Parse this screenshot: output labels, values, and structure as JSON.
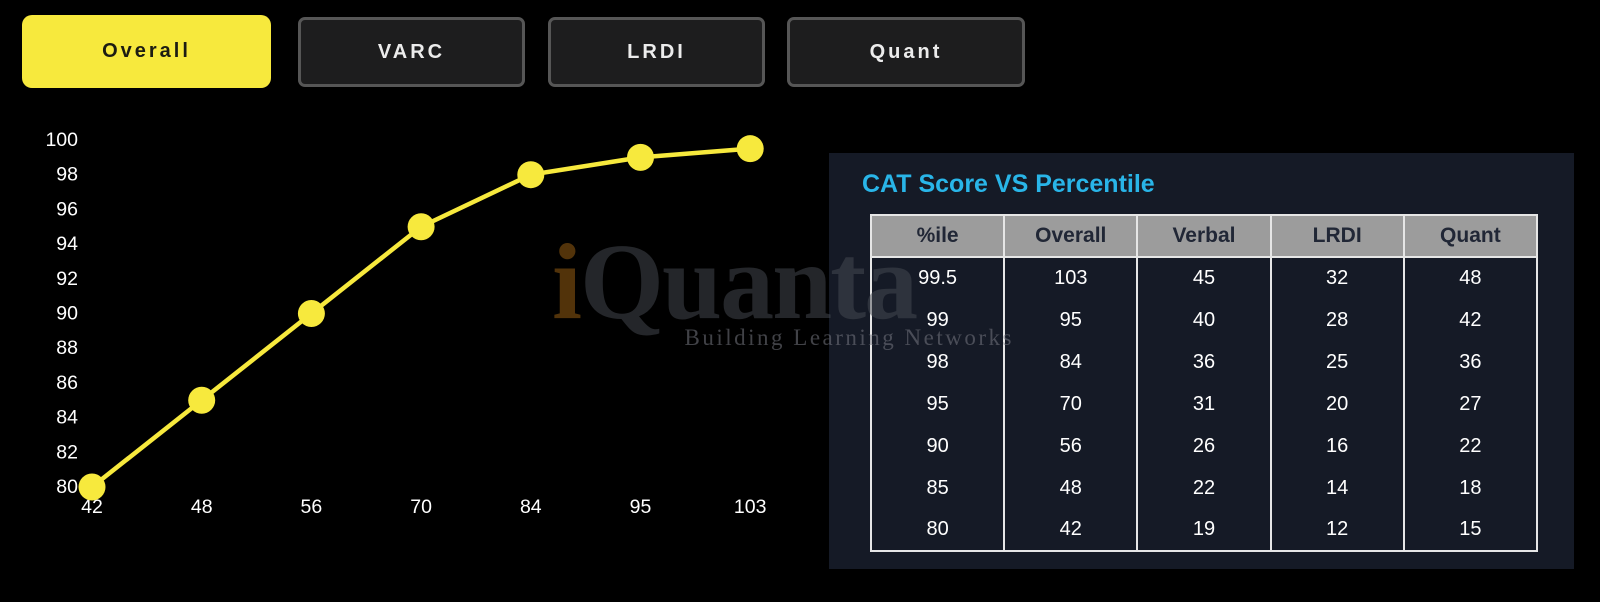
{
  "tabs": [
    {
      "label": "Overall",
      "active": true
    },
    {
      "label": "VARC",
      "active": false
    },
    {
      "label": "LRDI",
      "active": false
    },
    {
      "label": "Quant",
      "active": false
    }
  ],
  "panel": {
    "title": "CAT Score VS Percentile"
  },
  "table": {
    "headers": [
      "%ile",
      "Overall",
      "Verbal",
      "LRDI",
      "Quant"
    ],
    "rows": [
      [
        "99.5",
        "103",
        "45",
        "32",
        "48"
      ],
      [
        "99",
        "95",
        "40",
        "28",
        "42"
      ],
      [
        "98",
        "84",
        "36",
        "25",
        "36"
      ],
      [
        "95",
        "70",
        "31",
        "20",
        "27"
      ],
      [
        "90",
        "56",
        "26",
        "16",
        "22"
      ],
      [
        "85",
        "48",
        "22",
        "14",
        "18"
      ],
      [
        "80",
        "42",
        "19",
        "12",
        "15"
      ]
    ]
  },
  "watermark": {
    "logo_i": "i",
    "logo_rest": "Quanta",
    "tagline": "Building Learning Networks"
  },
  "chart_data": {
    "type": "line",
    "series": [
      {
        "name": "Overall",
        "x": [
          42,
          48,
          56,
          70,
          84,
          95,
          103
        ],
        "y": [
          80,
          85,
          90,
          95,
          98,
          99,
          99.5
        ]
      }
    ],
    "x_tick_labels": [
      "42",
      "48",
      "56",
      "70",
      "84",
      "95",
      "103"
    ],
    "y_ticks": [
      80,
      82,
      84,
      86,
      88,
      90,
      92,
      94,
      96,
      98,
      100
    ],
    "ylim": [
      80,
      100
    ],
    "xlabel": "",
    "ylabel": "",
    "grid": false,
    "legend": false,
    "line_color": "#f7e93d",
    "marker_color": "#f7e93d",
    "axis_text_color": "#ffffff",
    "background": "#000000"
  }
}
